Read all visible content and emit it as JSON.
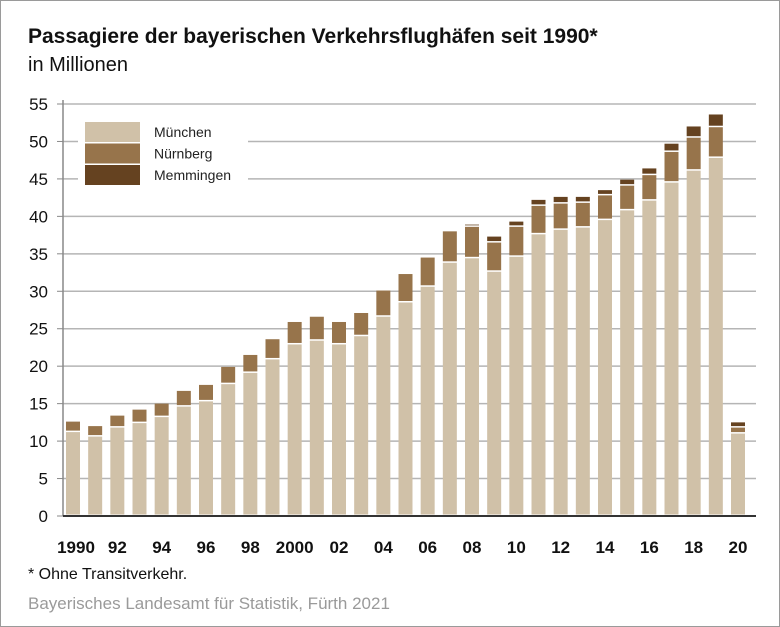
{
  "chart_data": {
    "type": "bar",
    "stacked": true,
    "title": "Passagiere der bayerischen Verkehrsflughäfen seit 1990*",
    "subtitle": "in Millionen",
    "xlabel": "",
    "ylabel": "",
    "ylim": [
      0,
      55
    ],
    "yticks": [
      0,
      5,
      10,
      15,
      20,
      25,
      30,
      35,
      40,
      45,
      50,
      55
    ],
    "years": [
      1990,
      1991,
      1992,
      1993,
      1994,
      1995,
      1996,
      1997,
      1998,
      1999,
      2000,
      2001,
      2002,
      2003,
      2004,
      2005,
      2006,
      2007,
      2008,
      2009,
      2010,
      2011,
      2012,
      2013,
      2014,
      2015,
      2016,
      2017,
      2018,
      2019,
      2020
    ],
    "xtick_labels": [
      "1990",
      "92",
      "94",
      "96",
      "98",
      "2000",
      "02",
      "04",
      "06",
      "08",
      "10",
      "12",
      "14",
      "16",
      "18",
      "20"
    ],
    "legend_position": "top-left",
    "grid": true,
    "series": [
      {
        "name": "München",
        "color": "#d0c1a8",
        "values": [
          11.2,
          10.6,
          11.8,
          12.4,
          13.2,
          14.6,
          15.3,
          17.6,
          19.1,
          20.9,
          22.9,
          23.4,
          22.9,
          24.0,
          26.6,
          28.5,
          30.6,
          33.8,
          34.4,
          32.6,
          34.6,
          37.6,
          38.2,
          38.5,
          39.5,
          40.8,
          42.1,
          44.5,
          46.1,
          47.8,
          11.0
        ]
      },
      {
        "name": "Nürnberg",
        "color": "#97744b",
        "values": [
          1.4,
          1.4,
          1.6,
          1.8,
          1.8,
          2.1,
          2.2,
          2.3,
          2.4,
          2.7,
          3.0,
          3.2,
          3.0,
          3.1,
          3.5,
          3.8,
          3.9,
          4.2,
          4.2,
          3.9,
          4.0,
          3.8,
          3.5,
          3.3,
          3.3,
          3.3,
          3.4,
          4.1,
          4.4,
          4.1,
          0.8
        ]
      },
      {
        "name": "Memmingen",
        "color": "#654220",
        "values": [
          0,
          0,
          0,
          0,
          0,
          0,
          0,
          0,
          0,
          0,
          0,
          0,
          0,
          0,
          0,
          0,
          0,
          0,
          0.3,
          0.8,
          0.7,
          0.8,
          0.9,
          0.8,
          0.7,
          0.8,
          0.9,
          1.1,
          1.5,
          1.7,
          0.7
        ]
      }
    ],
    "footnote": "* Ohne Transitverkehr.",
    "source": "Bayerisches Landesamt für Statistik, Fürth 2021"
  }
}
